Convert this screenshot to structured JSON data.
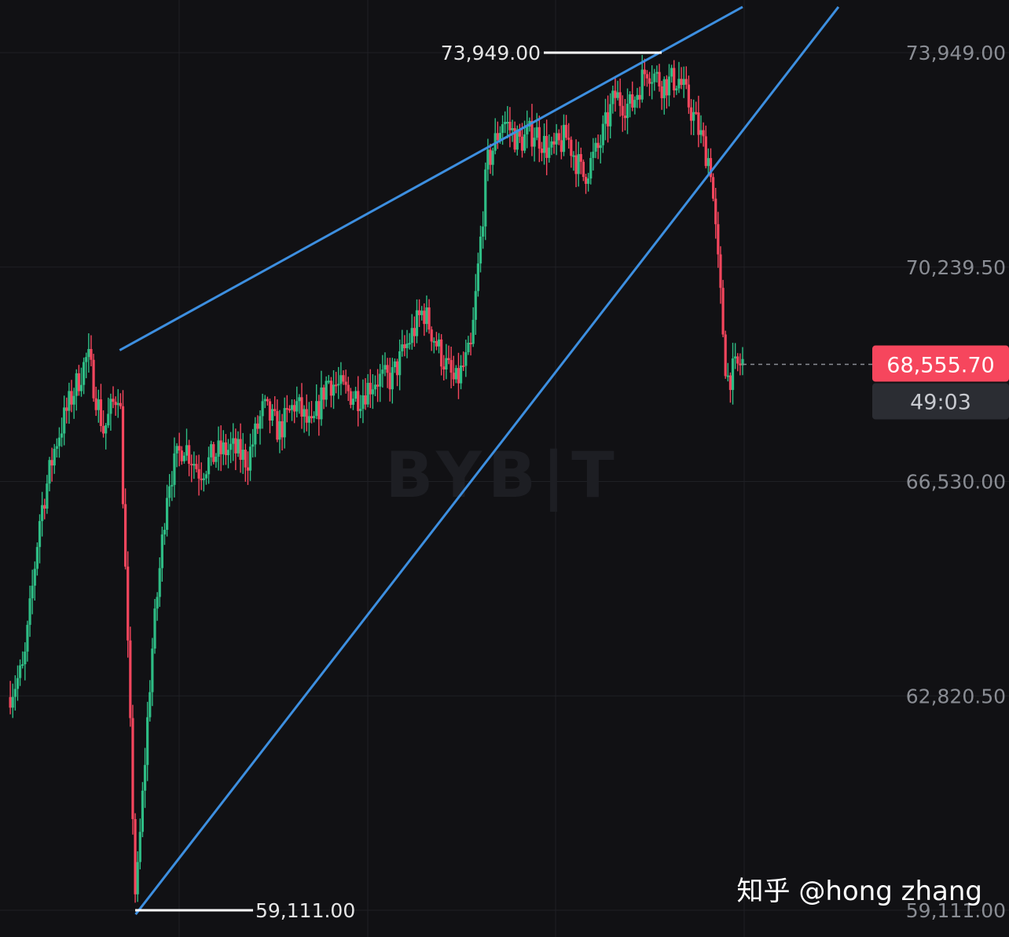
{
  "chart_data": {
    "type": "candlestick",
    "price_axis": {
      "position": "right",
      "ticks": [
        "73,949.00",
        "70,239.50",
        "66,530.00",
        "62,820.50",
        "59,111.00"
      ],
      "tick_values": [
        73949.0,
        70239.5,
        66530.0,
        62820.5,
        59111.0
      ],
      "range": [
        59111.0,
        73949.0
      ]
    },
    "grid": true,
    "colors": {
      "up": "#2ebd85",
      "down": "#f6465d",
      "trendline": "#3d8fe0",
      "background": "#111114"
    },
    "annotations": {
      "high": {
        "label": "73,949.00",
        "value": 73949.0
      },
      "low": {
        "label": "59,111.00",
        "value": 59111.0
      }
    },
    "current_price": {
      "label": "68,555.70",
      "value": 68555.7,
      "countdown": "49:03"
    },
    "wedge_lines": [
      {
        "name": "upper",
        "points": [
          [
            7,
            68800
          ],
          [
            46,
            74740
          ]
        ]
      },
      {
        "name": "lower",
        "points": [
          [
            8,
            59040
          ],
          [
            52,
            74740
          ]
        ]
      }
    ],
    "candle_path": [
      [
        0,
        62800
      ],
      [
        1,
        63300
      ],
      [
        2,
        65900
      ],
      [
        3,
        67200
      ],
      [
        4,
        68000
      ],
      [
        5,
        68700
      ],
      [
        6,
        67400
      ],
      [
        7,
        68200
      ],
      [
        8,
        59200
      ],
      [
        9,
        63500
      ],
      [
        10,
        66500
      ],
      [
        11,
        67200
      ],
      [
        12,
        66700
      ],
      [
        13,
        67000
      ],
      [
        14,
        67100
      ],
      [
        15,
        66900
      ],
      [
        16,
        67800
      ],
      [
        17,
        67400
      ],
      [
        18,
        67900
      ],
      [
        19,
        67400
      ],
      [
        20,
        68300
      ],
      [
        21,
        68100
      ],
      [
        22,
        68000
      ],
      [
        23,
        68300
      ],
      [
        24,
        68300
      ],
      [
        25,
        68900
      ],
      [
        26,
        69500
      ],
      [
        27,
        68800
      ],
      [
        28,
        68200
      ],
      [
        29,
        68800
      ],
      [
        30,
        72000
      ],
      [
        31,
        72800
      ],
      [
        32,
        72400
      ],
      [
        33,
        72600
      ],
      [
        34,
        72200
      ],
      [
        35,
        72500
      ],
      [
        36,
        71800
      ],
      [
        37,
        72300
      ],
      [
        38,
        73200
      ],
      [
        39,
        73000
      ],
      [
        40,
        73700
      ],
      [
        41,
        73400
      ],
      [
        42,
        73500
      ],
      [
        43,
        72800
      ],
      [
        44,
        72000
      ],
      [
        45,
        68300
      ],
      [
        46,
        68600
      ]
    ]
  },
  "watermark": "BYB|T",
  "credit": "知乎 @hong zhang"
}
